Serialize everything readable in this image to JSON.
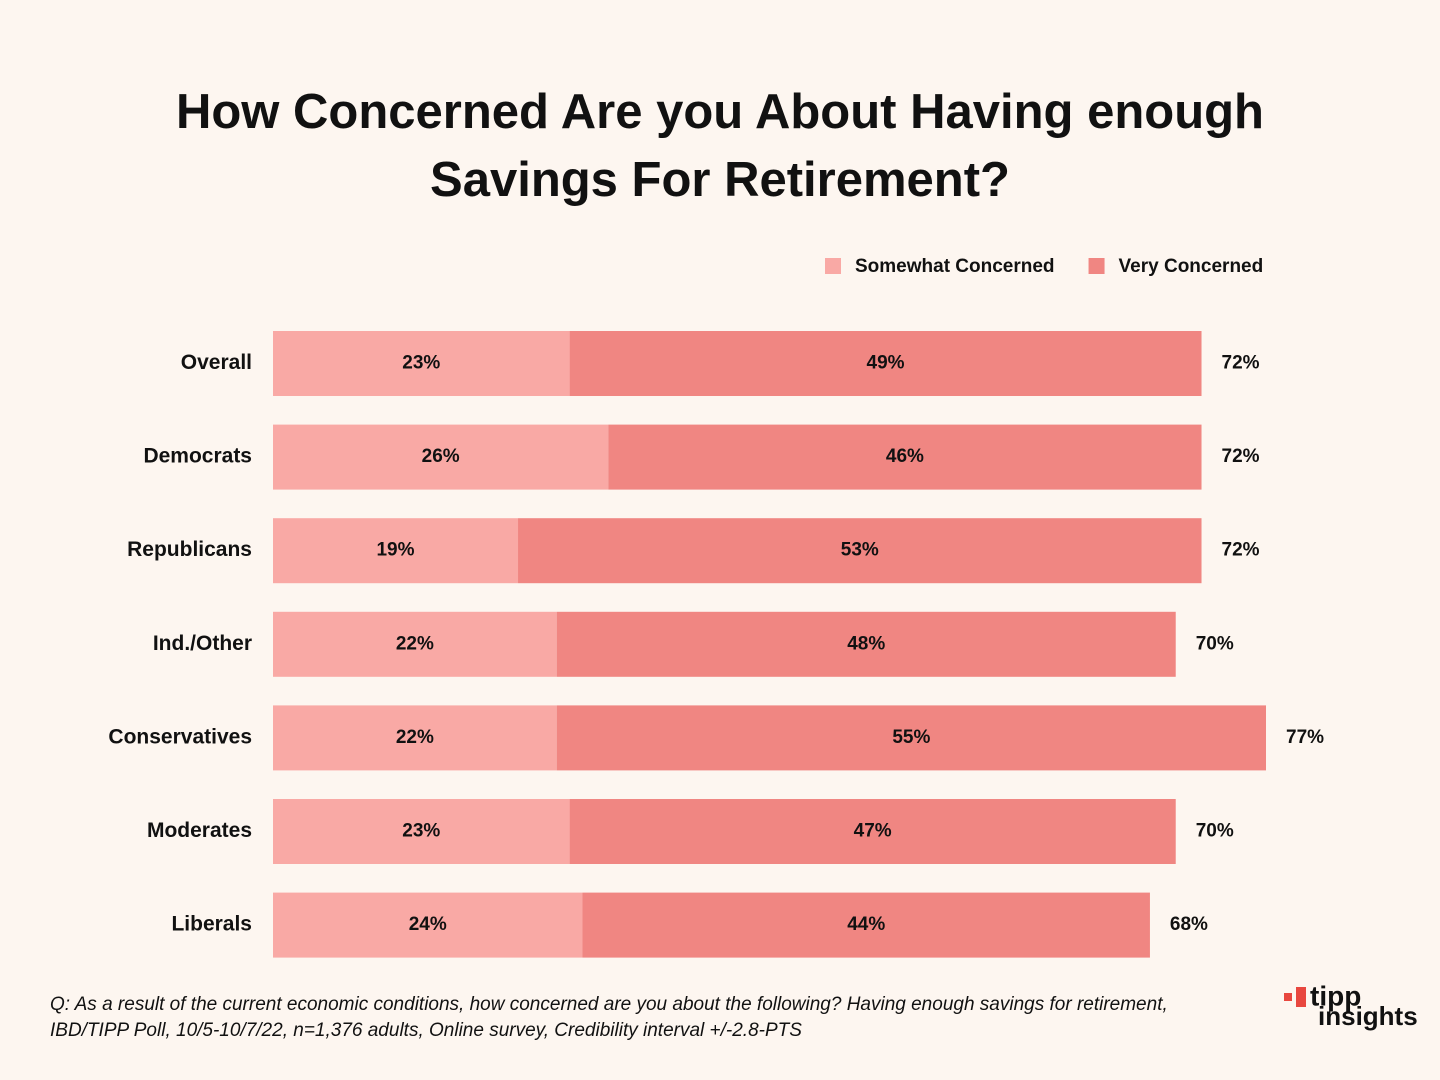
{
  "chart_data": {
    "type": "stacked-bar-horizontal",
    "title": "How Concerned Are you About Having enough Savings For Retirement?",
    "categories": [
      "Overall",
      "Democrats",
      "Republicans",
      "Ind./Other",
      "Conservatives",
      "Moderates",
      "Liberals"
    ],
    "series": [
      {
        "name": "Somewhat Concerned",
        "color": "#f9a9a5",
        "values": [
          23,
          26,
          19,
          22,
          22,
          23,
          24
        ],
        "value_labels": [
          "23%",
          "26%",
          "19%",
          "22%",
          "22%",
          "23%",
          "24%"
        ]
      },
      {
        "name": "Very Concerned",
        "color": "#f08682",
        "values": [
          49,
          46,
          53,
          48,
          55,
          47,
          44
        ],
        "value_labels": [
          "49%",
          "46%",
          "53%",
          "48%",
          "55%",
          "47%",
          "44%"
        ]
      }
    ],
    "totals": {
      "values": [
        72,
        72,
        72,
        70,
        77,
        70,
        68
      ],
      "value_labels": [
        "72%",
        "72%",
        "72%",
        "70%",
        "77%",
        "70%",
        "68%"
      ]
    },
    "note": "Q: As a result of the current economic conditions, how concerned are you about the following? Having enough savings for retirement, IBD/TIPP Poll, 10/5-10/7/22, n=1,376 adults, Online survey, Credibility interval +/-2.8-PTS",
    "legend": "top-right"
  },
  "logo": {
    "line1": "tipp",
    "line2": "insights"
  }
}
